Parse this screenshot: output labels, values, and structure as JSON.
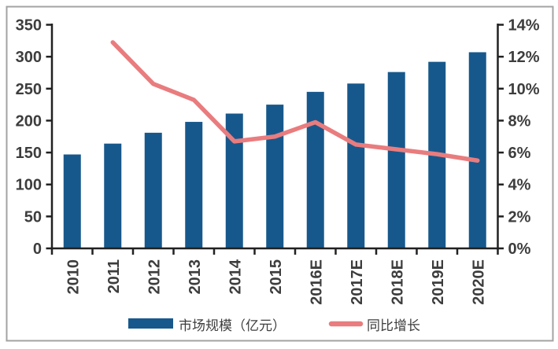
{
  "chart_data": {
    "type": "combo",
    "title": "",
    "categories": [
      "2010",
      "2011",
      "2012",
      "2013",
      "2014",
      "2015",
      "2016E",
      "2017E",
      "2018E",
      "2019E",
      "2020E"
    ],
    "series": [
      {
        "name": "市场规模（亿元）",
        "type": "bar",
        "axis": "left",
        "color": "#17588c",
        "values": [
          147,
          164,
          181,
          198,
          211,
          225,
          245,
          258,
          276,
          292,
          307
        ]
      },
      {
        "name": "同比增长",
        "type": "line",
        "axis": "right",
        "color": "#e97c7e",
        "values": [
          null,
          12.9,
          10.3,
          9.3,
          6.7,
          7.0,
          7.9,
          6.5,
          6.2,
          5.9,
          5.5
        ]
      }
    ],
    "left_axis": {
      "min": 0,
      "max": 350,
      "tick_step": 50,
      "tick_labels": [
        "0",
        "50",
        "100",
        "150",
        "200",
        "250",
        "300",
        "350"
      ]
    },
    "right_axis": {
      "min": 0,
      "max": 14,
      "tick_step": 2,
      "tick_labels": [
        "0%",
        "2%",
        "4%",
        "6%",
        "8%",
        "10%",
        "12%",
        "14%"
      ]
    },
    "legend": {
      "position": "bottom",
      "items": [
        {
          "label": "市场规模（亿元）",
          "swatch": "bar"
        },
        {
          "label": "同比增长",
          "swatch": "line"
        }
      ]
    },
    "grid": false,
    "x_label_rotation": -90
  },
  "colors": {
    "bar": "#17588c",
    "line": "#e97c7e",
    "axis": "#212121",
    "tick_label": "#3d3d3d",
    "legend_label": "#3d3d3d",
    "frame_border": "#a3a3a3",
    "background": "#ffffff"
  }
}
